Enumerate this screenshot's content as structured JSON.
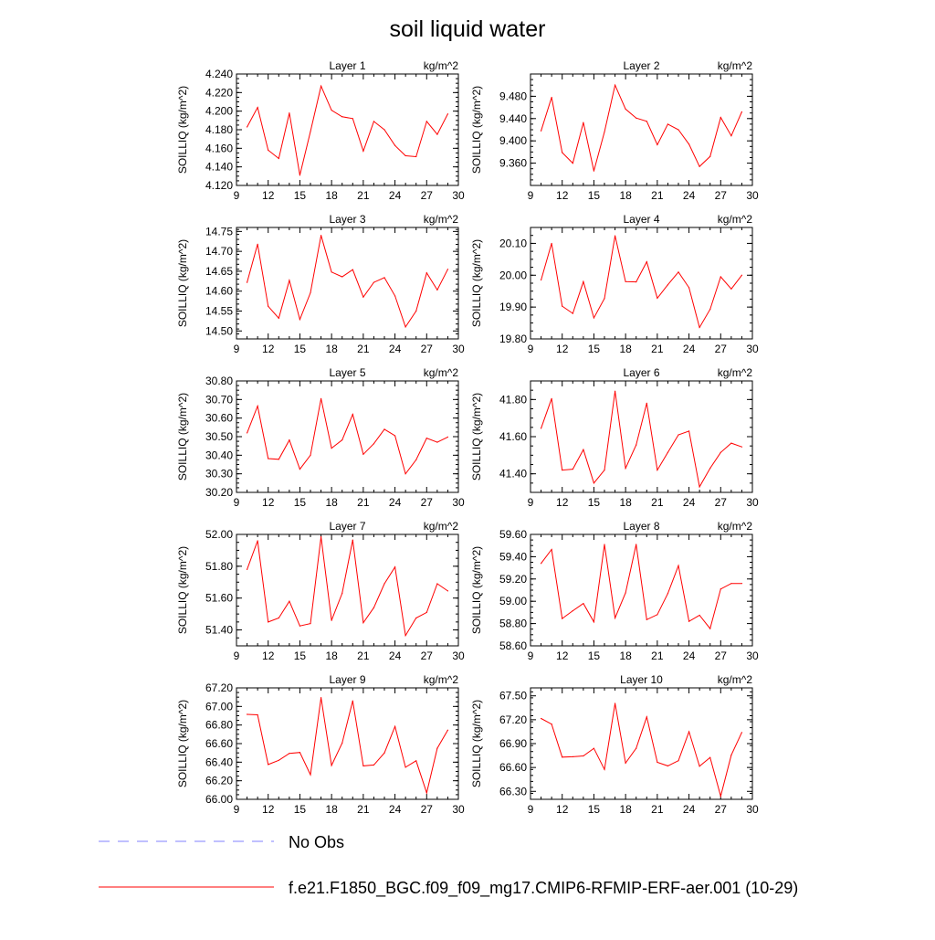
{
  "title": "soil liquid water",
  "legend": {
    "obs_label": "No Obs",
    "model_label": "f.e21.F1850_BGC.f09_f09_mg17.CMIP6-RFMIP-ERF-aer.001 (10-29)",
    "obs_color": "#8080ff",
    "model_color": "#ff0000"
  },
  "chart_data": [
    {
      "type": "line",
      "title": "Layer 1",
      "units": "kg/m^2",
      "ylabel": "SOILLIQ  (kg/m^2)",
      "xlim": [
        9,
        30
      ],
      "xticks": [
        9,
        12,
        15,
        18,
        21,
        24,
        27,
        30
      ],
      "ylim": [
        4.12,
        4.24
      ],
      "yticks": [
        "4.120",
        "4.140",
        "4.160",
        "4.180",
        "4.200",
        "4.220",
        "4.240"
      ],
      "ytick_step": 0.02,
      "x": [
        10,
        11,
        12,
        13,
        14,
        15,
        16,
        17,
        18,
        19,
        20,
        21,
        22,
        23,
        24,
        25,
        26,
        27,
        28,
        29
      ],
      "values": [
        4.183,
        4.204,
        4.158,
        4.149,
        4.198,
        4.131,
        4.178,
        4.227,
        4.201,
        4.194,
        4.192,
        4.157,
        4.189,
        4.18,
        4.163,
        4.152,
        4.151,
        4.189,
        4.175,
        4.197
      ]
    },
    {
      "type": "line",
      "title": "Layer 2",
      "units": "kg/m^2",
      "ylabel": "SOILLIQ  (kg/m^2)",
      "xlim": [
        9,
        30
      ],
      "xticks": [
        9,
        12,
        15,
        18,
        21,
        24,
        27,
        30
      ],
      "ylim": [
        9.32,
        9.52
      ],
      "yticks": [
        "9.360",
        "9.400",
        "9.440",
        "9.480"
      ],
      "ytick_step": 0.04,
      "x": [
        10,
        11,
        12,
        13,
        14,
        15,
        16,
        17,
        18,
        19,
        20,
        21,
        22,
        23,
        24,
        25,
        26,
        27,
        28,
        29
      ],
      "values": [
        9.418,
        9.478,
        9.379,
        9.36,
        9.433,
        9.346,
        9.416,
        9.5,
        9.457,
        9.441,
        9.435,
        9.393,
        9.43,
        9.42,
        9.394,
        9.354,
        9.372,
        9.442,
        9.409,
        9.452
      ]
    },
    {
      "type": "line",
      "title": "Layer 3",
      "units": "kg/m^2",
      "ylabel": "SOILLIQ  (kg/m^2)",
      "xlim": [
        9,
        30
      ],
      "xticks": [
        9,
        12,
        15,
        18,
        21,
        24,
        27,
        30
      ],
      "ylim": [
        14.48,
        14.76
      ],
      "yticks": [
        "14.50",
        "14.55",
        "14.60",
        "14.65",
        "14.70",
        "14.75"
      ],
      "ytick_step": 0.05,
      "x": [
        10,
        11,
        12,
        13,
        14,
        15,
        16,
        17,
        18,
        19,
        20,
        21,
        22,
        23,
        24,
        25,
        26,
        27,
        28,
        29
      ],
      "values": [
        14.622,
        14.718,
        14.562,
        14.532,
        14.627,
        14.529,
        14.596,
        14.74,
        14.648,
        14.636,
        14.654,
        14.585,
        14.622,
        14.634,
        14.588,
        14.51,
        14.55,
        14.646,
        14.603,
        14.655
      ]
    },
    {
      "type": "line",
      "title": "Layer 4",
      "units": "kg/m^2",
      "ylabel": "SOILLIQ  (kg/m^2)",
      "xlim": [
        9,
        30
      ],
      "xticks": [
        9,
        12,
        15,
        18,
        21,
        24,
        27,
        30
      ],
      "ylim": [
        19.8,
        20.15
      ],
      "yticks": [
        "19.80",
        "19.90",
        "20.00",
        "20.10"
      ],
      "ytick_step": 0.1,
      "x": [
        10,
        11,
        12,
        13,
        14,
        15,
        16,
        17,
        18,
        19,
        20,
        21,
        22,
        23,
        24,
        25,
        26,
        27,
        28,
        29
      ],
      "values": [
        19.985,
        20.1,
        19.903,
        19.88,
        19.98,
        19.866,
        19.927,
        20.124,
        19.98,
        19.979,
        20.042,
        19.928,
        19.97,
        20.01,
        19.961,
        19.836,
        19.893,
        19.995,
        19.957,
        20.0
      ]
    },
    {
      "type": "line",
      "title": "Layer 5",
      "units": "kg/m^2",
      "ylabel": "SOILLIQ  (kg/m^2)",
      "xlim": [
        9,
        30
      ],
      "xticks": [
        9,
        12,
        15,
        18,
        21,
        24,
        27,
        30
      ],
      "ylim": [
        30.2,
        30.8
      ],
      "yticks": [
        "30.20",
        "30.30",
        "30.40",
        "30.50",
        "30.60",
        "30.70",
        "30.80"
      ],
      "ytick_step": 0.1,
      "x": [
        10,
        11,
        12,
        13,
        14,
        15,
        16,
        17,
        18,
        19,
        20,
        21,
        22,
        23,
        24,
        25,
        26,
        27,
        28,
        29
      ],
      "values": [
        30.52,
        30.665,
        30.382,
        30.378,
        30.482,
        30.325,
        30.4,
        30.705,
        30.438,
        30.482,
        30.62,
        30.405,
        30.462,
        30.54,
        30.505,
        30.3,
        30.375,
        30.492,
        30.47,
        30.498
      ]
    },
    {
      "type": "line",
      "title": "Layer 6",
      "units": "kg/m^2",
      "ylabel": "SOILLIQ  (kg/m^2)",
      "xlim": [
        9,
        30
      ],
      "xticks": [
        9,
        12,
        15,
        18,
        21,
        24,
        27,
        30
      ],
      "ylim": [
        41.3,
        41.9
      ],
      "yticks": [
        "41.40",
        "41.60",
        "41.80"
      ],
      "ytick_step": 0.2,
      "x": [
        10,
        11,
        12,
        13,
        14,
        15,
        16,
        17,
        18,
        19,
        20,
        21,
        22,
        23,
        24,
        25,
        26,
        27,
        28,
        29
      ],
      "values": [
        41.645,
        41.805,
        41.42,
        41.425,
        41.53,
        41.35,
        41.42,
        41.845,
        41.43,
        41.555,
        41.78,
        41.42,
        41.515,
        41.61,
        41.63,
        41.33,
        41.43,
        41.515,
        41.565,
        41.545
      ]
    },
    {
      "type": "line",
      "title": "Layer 7",
      "units": "kg/m^2",
      "ylabel": "SOILLIQ  (kg/m^2)",
      "xlim": [
        9,
        30
      ],
      "xticks": [
        9,
        12,
        15,
        18,
        21,
        24,
        27,
        30
      ],
      "ylim": [
        51.3,
        52.0
      ],
      "yticks": [
        "51.40",
        "51.60",
        "51.80",
        "52.00"
      ],
      "ytick_step": 0.2,
      "x": [
        10,
        11,
        12,
        13,
        14,
        15,
        16,
        17,
        18,
        19,
        20,
        21,
        22,
        23,
        24,
        25,
        26,
        27,
        28,
        29
      ],
      "values": [
        51.78,
        51.96,
        51.45,
        51.475,
        51.58,
        51.425,
        51.44,
        51.985,
        51.46,
        51.63,
        51.965,
        51.445,
        51.54,
        51.69,
        51.795,
        51.365,
        51.475,
        51.51,
        51.69,
        51.645
      ]
    },
    {
      "type": "line",
      "title": "Layer 8",
      "units": "kg/m^2",
      "ylabel": "SOILLIQ  (kg/m^2)",
      "xlim": [
        9,
        30
      ],
      "xticks": [
        9,
        12,
        15,
        18,
        21,
        24,
        27,
        30
      ],
      "ylim": [
        58.6,
        59.6
      ],
      "yticks": [
        "58.60",
        "58.80",
        "59.00",
        "59.20",
        "59.40",
        "59.60"
      ],
      "ytick_step": 0.2,
      "x": [
        10,
        11,
        12,
        13,
        14,
        15,
        16,
        17,
        18,
        19,
        20,
        21,
        22,
        23,
        24,
        25,
        26,
        27,
        28,
        29
      ],
      "values": [
        59.34,
        59.465,
        58.845,
        58.915,
        58.98,
        58.815,
        59.51,
        58.85,
        59.075,
        59.51,
        58.835,
        58.88,
        59.07,
        59.32,
        58.82,
        58.875,
        58.755,
        59.11,
        59.16,
        59.16
      ]
    },
    {
      "type": "line",
      "title": "Layer 9",
      "units": "kg/m^2",
      "ylabel": "SOILLIQ  (kg/m^2)",
      "xlim": [
        9,
        30
      ],
      "xticks": [
        9,
        12,
        15,
        18,
        21,
        24,
        27,
        30
      ],
      "ylim": [
        66.0,
        67.2
      ],
      "yticks": [
        "66.00",
        "66.20",
        "66.40",
        "66.60",
        "66.80",
        "67.00",
        "67.20"
      ],
      "ytick_step": 0.2,
      "x": [
        10,
        11,
        12,
        13,
        14,
        15,
        16,
        17,
        18,
        19,
        20,
        21,
        22,
        23,
        24,
        25,
        26,
        27,
        28,
        29
      ],
      "values": [
        66.915,
        66.91,
        66.375,
        66.42,
        66.495,
        66.505,
        66.265,
        67.095,
        66.365,
        66.605,
        67.06,
        66.36,
        66.37,
        66.5,
        66.785,
        66.345,
        66.415,
        66.07,
        66.55,
        66.745
      ]
    },
    {
      "type": "line",
      "title": "Layer 10",
      "units": "kg/m^2",
      "ylabel": "SOILLIQ  (kg/m^2)",
      "xlim": [
        9,
        30
      ],
      "xticks": [
        9,
        12,
        15,
        18,
        21,
        24,
        27,
        30
      ],
      "ylim": [
        66.2,
        67.6
      ],
      "yticks": [
        "66.30",
        "66.60",
        "66.90",
        "67.20",
        "67.50"
      ],
      "ytick_step": 0.3,
      "x": [
        10,
        11,
        12,
        13,
        14,
        15,
        16,
        17,
        18,
        19,
        20,
        21,
        22,
        23,
        24,
        25,
        26,
        27,
        28,
        29
      ],
      "values": [
        67.215,
        67.145,
        66.73,
        66.735,
        66.745,
        66.84,
        66.575,
        67.405,
        66.655,
        66.84,
        67.235,
        66.665,
        66.62,
        66.685,
        67.05,
        66.615,
        66.725,
        66.24,
        66.755,
        67.04
      ]
    }
  ]
}
